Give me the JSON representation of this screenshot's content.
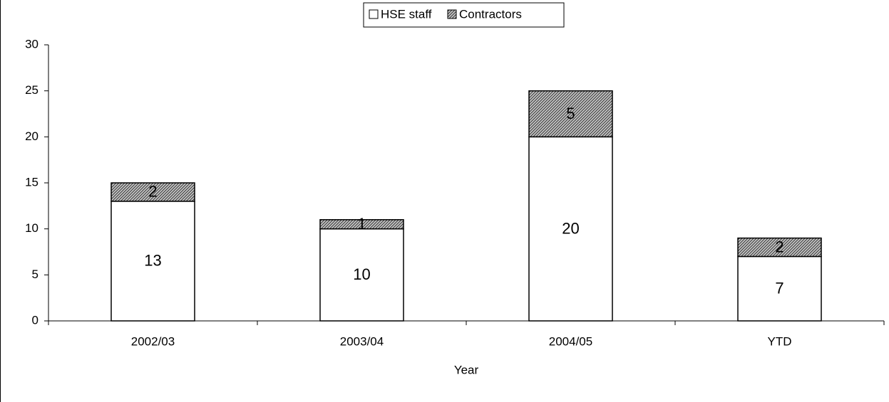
{
  "chart_data": {
    "type": "stacked_bar",
    "categories": [
      "2002/03",
      "2003/04",
      "2004/05",
      "YTD"
    ],
    "series": [
      {
        "name": "HSE staff",
        "color": "#ffffff",
        "values": [
          13,
          10,
          20,
          7
        ]
      },
      {
        "name": "Contractors",
        "color": "#a0a0a0",
        "values": [
          2,
          1,
          5,
          2
        ]
      }
    ],
    "x_label": "Year",
    "ylim": [
      0,
      30
    ],
    "yticks": [
      0,
      5,
      10,
      15,
      20,
      25,
      30
    ]
  }
}
